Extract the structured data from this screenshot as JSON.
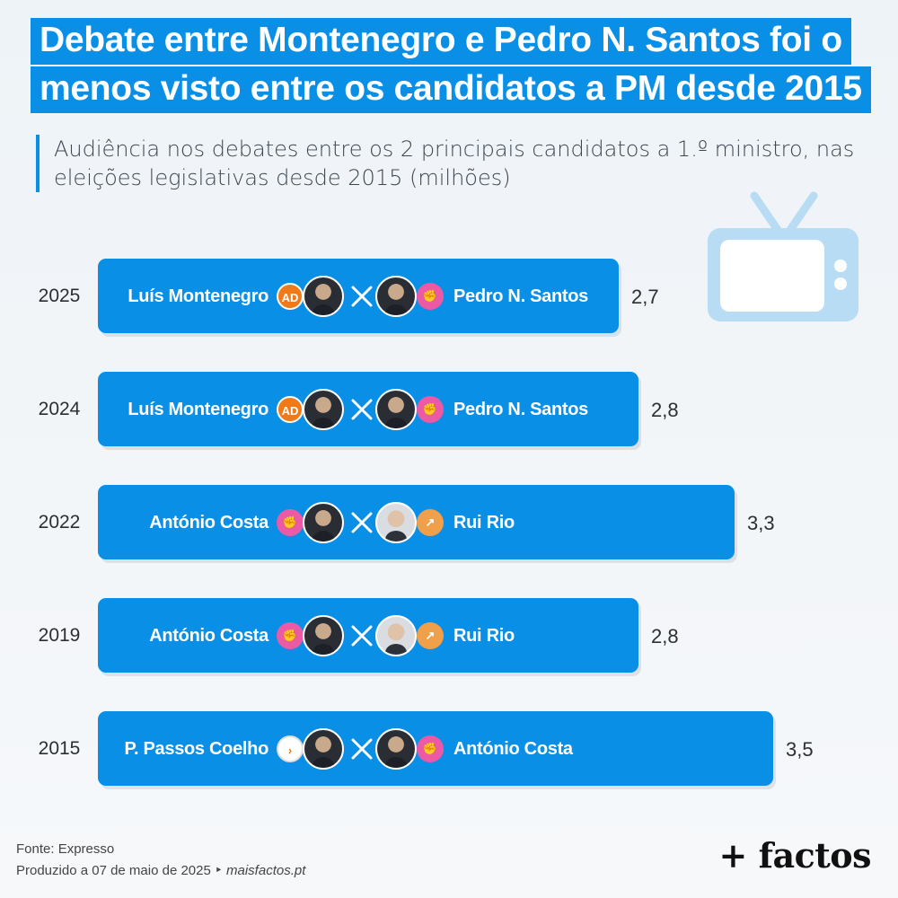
{
  "header": {
    "title_line1": "Debate entre Montenegro e Pedro N. Santos foi o",
    "title_line2": "menos visto entre os candidatos a PM desde 2015",
    "subtitle_line1": "Audiência nos debates entre os 2 principais candidatos a 1.º ministro, nas",
    "subtitle_line2": "eleições legislativas desde 2015 (milhões)"
  },
  "colors": {
    "bar": "#0a8fe6",
    "title_bg": "#0a8fe6",
    "tv_icon": "#b8dcf4"
  },
  "icons": {
    "tv": "tv-icon",
    "versus": "versus-x-icon"
  },
  "chart_data": {
    "type": "bar",
    "orientation": "horizontal",
    "categories": [
      "2025",
      "2024",
      "2022",
      "2019",
      "2015"
    ],
    "values": [
      2.7,
      2.8,
      3.3,
      2.8,
      3.5
    ],
    "value_labels": [
      "2,7",
      "2,8",
      "3,3",
      "2,8",
      "3,5"
    ],
    "xlim": [
      0,
      3.5
    ],
    "grid": false,
    "matchups": [
      {
        "left": "Luís Montenegro",
        "right": "Pedro N. Santos",
        "left_logo": "AD",
        "right_logo": "PS"
      },
      {
        "left": "Luís Montenegro",
        "right": "Pedro N. Santos",
        "left_logo": "AD",
        "right_logo": "PS"
      },
      {
        "left": "António Costa",
        "right": "Rui Rio",
        "left_logo": "PS",
        "right_logo": "PSD"
      },
      {
        "left": "António Costa",
        "right": "Rui Rio",
        "left_logo": "PS",
        "right_logo": "PSD"
      },
      {
        "left": "P. Passos Coelho",
        "right": "António Costa",
        "left_logo": "PàF",
        "right_logo": "PS"
      }
    ]
  },
  "footer": {
    "source": "Fonte: Expresso",
    "produced": "Produzido a 07 de maio de 2025 ‣ ",
    "site": "maisfactos.pt",
    "brand": "+ factos"
  }
}
